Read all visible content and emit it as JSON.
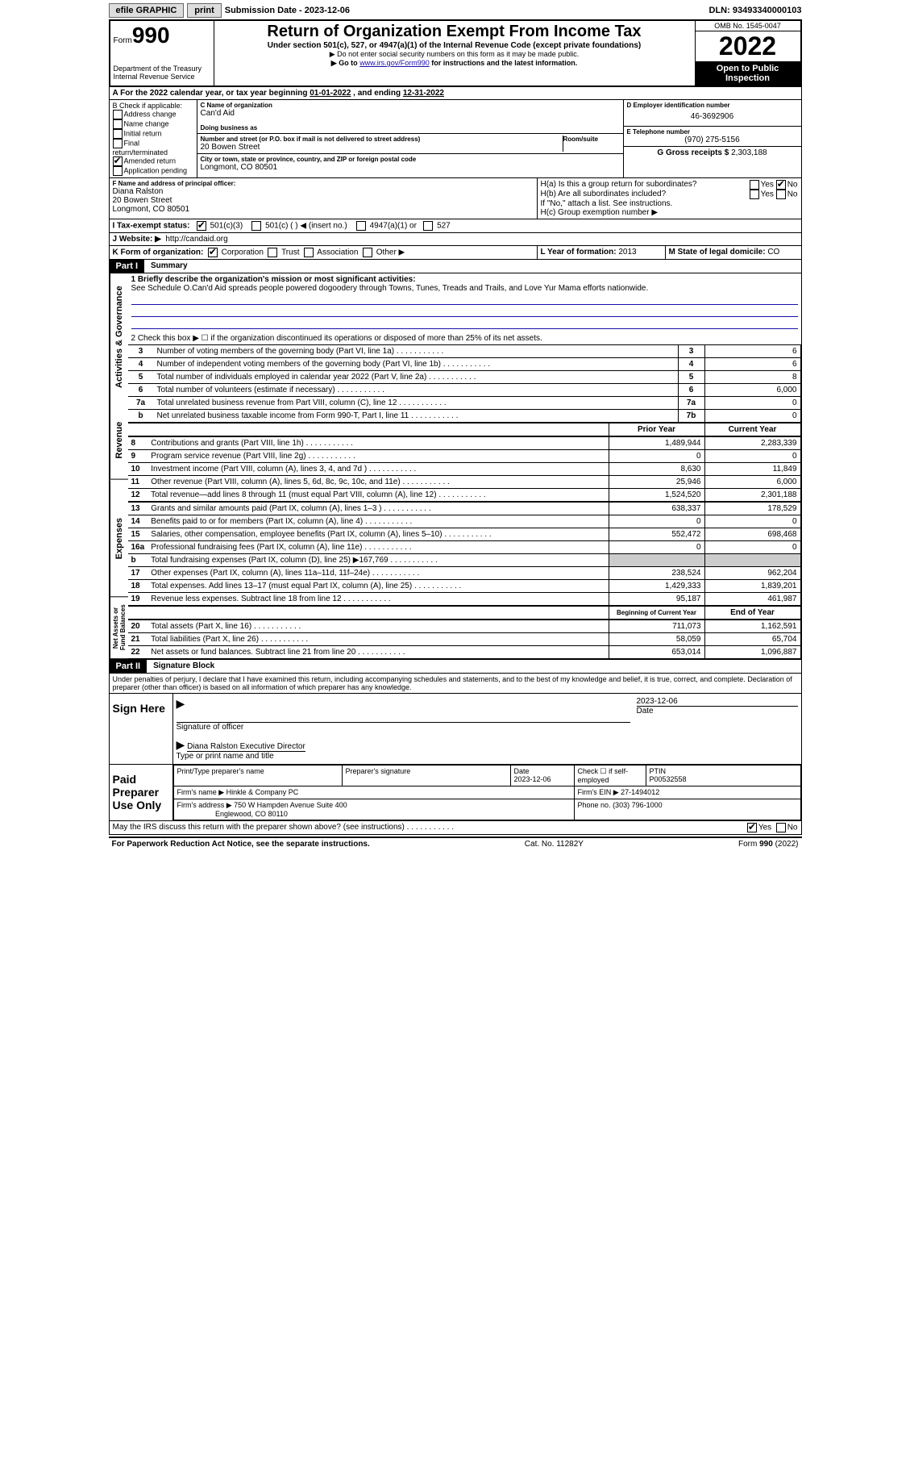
{
  "topbar": {
    "efile": "efile GRAPHIC",
    "print": "print",
    "sub_label": "Submission Date - 2023-12-06",
    "dln": "DLN: 93493340000103"
  },
  "header": {
    "form_label": "Form",
    "form_num": "990",
    "title": "Return of Organization Exempt From Income Tax",
    "subtitle": "Under section 501(c), 527, or 4947(a)(1) of the Internal Revenue Code (except private foundations)",
    "note1": "▶ Do not enter social security numbers on this form as it may be made public.",
    "note2_pre": "▶ Go to ",
    "note2_link": "www.irs.gov/Form990",
    "note2_post": " for instructions and the latest information.",
    "dept": "Department of the Treasury",
    "irs": "Internal Revenue Service",
    "omb": "OMB No. 1545-0047",
    "year": "2022",
    "inspect1": "Open to Public",
    "inspect2": "Inspection"
  },
  "period": {
    "text_a": "A For the 2022 calendar year, or tax year beginning ",
    "begin": "01-01-2022",
    "text_b": " , and ending ",
    "end": "12-31-2022"
  },
  "box_b": {
    "title": "B Check if applicable:",
    "items": [
      "Address change",
      "Name change",
      "Initial return",
      "Final return/terminated",
      "Amended return",
      "Application pending"
    ],
    "checked_idx": 4
  },
  "box_c": {
    "name_label": "C Name of organization",
    "name": "Can'd Aid",
    "dba_label": "Doing business as",
    "addr_label": "Number and street (or P.O. box if mail is not delivered to street address)",
    "suite_label": "Room/suite",
    "addr": "20 Bowen Street",
    "city_label": "City or town, state or province, country, and ZIP or foreign postal code",
    "city": "Longmont, CO  80501"
  },
  "box_d": {
    "label": "D Employer identification number",
    "value": "46-3692906"
  },
  "box_e": {
    "label": "E Telephone number",
    "value": "(970) 275-5156"
  },
  "box_g": {
    "label": "G Gross receipts $",
    "value": "2,303,188"
  },
  "box_f": {
    "label": "F  Name and address of principal officer:",
    "name": "Diana Ralston",
    "addr1": "20 Bowen Street",
    "addr2": "Longmont, CO  80501"
  },
  "box_h": {
    "ha": "H(a)  Is this a group return for subordinates?",
    "hb": "H(b)  Are all subordinates included?",
    "note": "If \"No,\" attach a list. See instructions.",
    "hc": "H(c)  Group exemption number ▶",
    "yes": "Yes",
    "no": "No"
  },
  "box_i": {
    "label": "I   Tax-exempt status:",
    "o501c3": "501(c)(3)",
    "o501c": "501(c) (   ) ◀ (insert no.)",
    "o4947": "4947(a)(1) or",
    "o527": "527"
  },
  "box_j": {
    "label": "J   Website: ▶",
    "url": "http://candaid.org"
  },
  "box_k": {
    "label": "K Form of organization:",
    "corp": "Corporation",
    "trust": "Trust",
    "assoc": "Association",
    "other": "Other ▶"
  },
  "box_l": {
    "label": "L Year of formation:",
    "value": "2013"
  },
  "box_m": {
    "label": "M State of legal domicile:",
    "value": "CO"
  },
  "part1": {
    "header": "Part I",
    "title": "Summary",
    "line1_label": "1   Briefly describe the organization's mission or most significant activities:",
    "line1_text": "See Schedule O.Can'd Aid spreads people powered dogoodery through Towns, Tunes, Treads and Trails, and Love Yur Mama efforts nationwide.",
    "line2": "2   Check this box ▶ ☐  if the organization discontinued its operations or disposed of more than 25% of its net assets.",
    "rows_ag": [
      {
        "n": "3",
        "d": "Number of voting members of the governing body (Part VI, line 1a)",
        "box": "3",
        "v": "6"
      },
      {
        "n": "4",
        "d": "Number of independent voting members of the governing body (Part VI, line 1b)",
        "box": "4",
        "v": "6"
      },
      {
        "n": "5",
        "d": "Total number of individuals employed in calendar year 2022 (Part V, line 2a)",
        "box": "5",
        "v": "8"
      },
      {
        "n": "6",
        "d": "Total number of volunteers (estimate if necessary)",
        "box": "6",
        "v": "6,000"
      },
      {
        "n": "7a",
        "d": "Total unrelated business revenue from Part VIII, column (C), line 12",
        "box": "7a",
        "v": "0"
      },
      {
        "n": "b",
        "d": "Net unrelated business taxable income from Form 990-T, Part I, line 11",
        "box": "7b",
        "v": "0"
      }
    ],
    "col_prior": "Prior Year",
    "col_current": "Current Year",
    "rows_rev": [
      {
        "n": "8",
        "d": "Contributions and grants (Part VIII, line 1h)",
        "p": "1,489,944",
        "c": "2,283,339"
      },
      {
        "n": "9",
        "d": "Program service revenue (Part VIII, line 2g)",
        "p": "0",
        "c": "0"
      },
      {
        "n": "10",
        "d": "Investment income (Part VIII, column (A), lines 3, 4, and 7d )",
        "p": "8,630",
        "c": "11,849"
      },
      {
        "n": "11",
        "d": "Other revenue (Part VIII, column (A), lines 5, 6d, 8c, 9c, 10c, and 11e)",
        "p": "25,946",
        "c": "6,000"
      },
      {
        "n": "12",
        "d": "Total revenue—add lines 8 through 11 (must equal Part VIII, column (A), line 12)",
        "p": "1,524,520",
        "c": "2,301,188"
      }
    ],
    "rows_exp": [
      {
        "n": "13",
        "d": "Grants and similar amounts paid (Part IX, column (A), lines 1–3 )",
        "p": "638,337",
        "c": "178,529"
      },
      {
        "n": "14",
        "d": "Benefits paid to or for members (Part IX, column (A), line 4)",
        "p": "0",
        "c": "0"
      },
      {
        "n": "15",
        "d": "Salaries, other compensation, employee benefits (Part IX, column (A), lines 5–10)",
        "p": "552,472",
        "c": "698,468"
      },
      {
        "n": "16a",
        "d": "Professional fundraising fees (Part IX, column (A), line 11e)",
        "p": "0",
        "c": "0"
      },
      {
        "n": "b",
        "d": "Total fundraising expenses (Part IX, column (D), line 25) ▶167,769",
        "p": "grey",
        "c": "grey"
      },
      {
        "n": "17",
        "d": "Other expenses (Part IX, column (A), lines 11a–11d, 11f–24e)",
        "p": "238,524",
        "c": "962,204"
      },
      {
        "n": "18",
        "d": "Total expenses. Add lines 13–17 (must equal Part IX, column (A), line 25)",
        "p": "1,429,333",
        "c": "1,839,201"
      },
      {
        "n": "19",
        "d": "Revenue less expenses. Subtract line 18 from line 12",
        "p": "95,187",
        "c": "461,987"
      }
    ],
    "col_begin": "Beginning of Current Year",
    "col_end": "End of Year",
    "rows_net": [
      {
        "n": "20",
        "d": "Total assets (Part X, line 16)",
        "p": "711,073",
        "c": "1,162,591"
      },
      {
        "n": "21",
        "d": "Total liabilities (Part X, line 26)",
        "p": "58,059",
        "c": "65,704"
      },
      {
        "n": "22",
        "d": "Net assets or fund balances. Subtract line 21 from line 20",
        "p": "653,014",
        "c": "1,096,887"
      }
    ],
    "vert_ag": "Activities & Governance",
    "vert_rev": "Revenue",
    "vert_exp": "Expenses",
    "vert_net": "Net Assets or Fund Balances"
  },
  "part2": {
    "header": "Part II",
    "title": "Signature Block",
    "decl": "Under penalties of perjury, I declare that I have examined this return, including accompanying schedules and statements, and to the best of my knowledge and belief, it is true, correct, and complete. Declaration of preparer (other than officer) is based on all information of which preparer has any knowledge.",
    "sign_here": "Sign Here",
    "sig_officer": "Signature of officer",
    "sig_date": "2023-12-06",
    "date_label": "Date",
    "officer_name": "Diana Ralston  Executive Director",
    "type_name": "Type or print name and title",
    "paid_prep": "Paid Preparer Use Only",
    "prep_name_label": "Print/Type preparer's name",
    "prep_sig_label": "Preparer's signature",
    "prep_date_label": "Date",
    "prep_date": "2023-12-06",
    "check_self": "Check ☐ if self-employed",
    "ptin_label": "PTIN",
    "ptin": "P00532558",
    "firm_name_label": "Firm's name    ▶",
    "firm_name": "Hinkle & Company PC",
    "firm_ein_label": "Firm's EIN ▶",
    "firm_ein": "27-1494012",
    "firm_addr_label": "Firm's address ▶",
    "firm_addr1": "750 W Hampden Avenue Suite 400",
    "firm_addr2": "Englewood, CO  80110",
    "phone_label": "Phone no.",
    "phone": "(303) 796-1000",
    "discuss": "May the IRS discuss this return with the preparer shown above? (see instructions)",
    "yes": "Yes",
    "no": "No"
  },
  "footer": {
    "left": "For Paperwork Reduction Act Notice, see the separate instructions.",
    "mid": "Cat. No. 11282Y",
    "right": "Form 990 (2022)"
  }
}
